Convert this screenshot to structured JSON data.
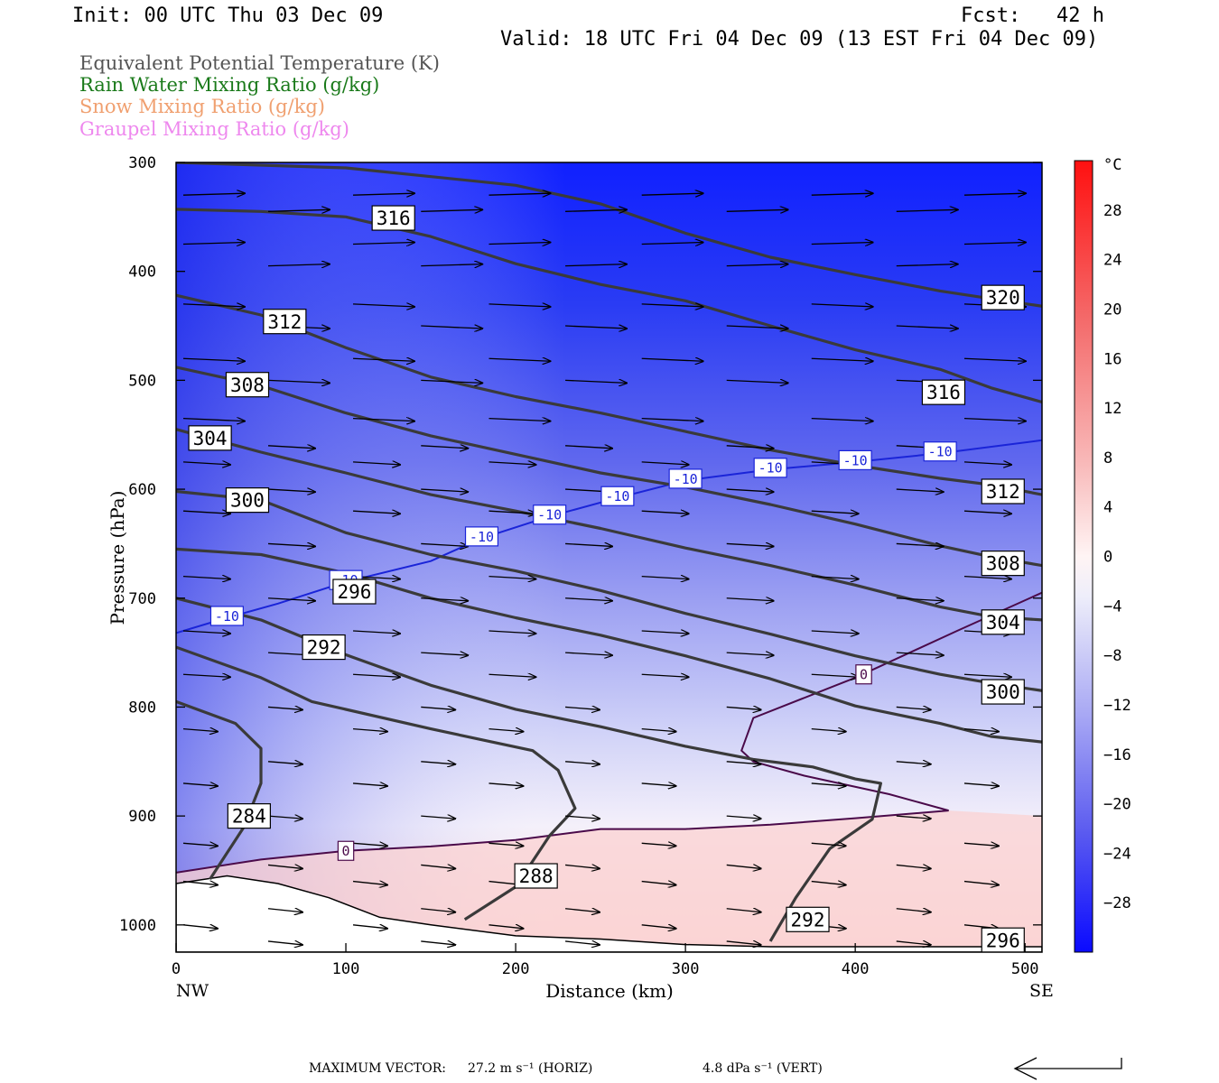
{
  "header": {
    "init": "Init: 00 UTC Thu 03 Dec 09",
    "fcst": "Fcst:   42 h",
    "valid": "Valid: 18 UTC Fri 04 Dec 09 (13 EST Fri 04 Dec 09)"
  },
  "legend": [
    {
      "label": "Equivalent Potential Temperature (K)",
      "color": "#555555"
    },
    {
      "label": "Rain Water Mixing Ratio (g/kg)",
      "color": "#1a7a1a"
    },
    {
      "label": "Snow Mixing Ratio (g/kg)",
      "color": "#f0a070"
    },
    {
      "label": "Graupel Mixing Ratio (g/kg)",
      "color": "#ee88ee"
    }
  ],
  "axes": {
    "ylabel": "Pressure (hPa)",
    "xlabel": "Distance (km)",
    "x_left_label": "NW",
    "x_right_label": "SE"
  },
  "colorbar": {
    "unit": "°C",
    "ticks": [
      "28",
      "24",
      "20",
      "16",
      "12",
      "8",
      "4",
      "0",
      "−4",
      "−8",
      "−12",
      "−16",
      "−20",
      "−24",
      "−28"
    ]
  },
  "footer": {
    "max_vector_label": "MAXIMUM VECTOR:",
    "horiz": "27.2 m s⁻¹ (HORIZ)",
    "vert": "4.8 dPa s⁻¹ (VERT)"
  },
  "chart_data": {
    "type": "contour",
    "xlim": [
      0,
      510
    ],
    "ylim": [
      1025,
      300
    ],
    "xticks": [
      0,
      100,
      200,
      300,
      400,
      500
    ],
    "yticks": [
      300,
      400,
      500,
      600,
      700,
      800,
      900,
      1000
    ],
    "temperature_levels_C": [
      -28,
      -24,
      -20,
      -16,
      -12,
      -8,
      -4,
      0,
      4,
      8,
      12,
      16,
      20,
      24,
      28
    ],
    "theta_e_contours": [
      {
        "label": "284",
        "points": [
          [
            0,
            795
          ],
          [
            35,
            815
          ],
          [
            50,
            838
          ],
          [
            50,
            870
          ],
          [
            40,
            910
          ],
          [
            20,
            958
          ]
        ]
      },
      {
        "label": "288",
        "points": [
          [
            0,
            745
          ],
          [
            50,
            773
          ],
          [
            80,
            795
          ],
          [
            150,
            820
          ],
          [
            210,
            840
          ],
          [
            225,
            858
          ],
          [
            235,
            893
          ],
          [
            220,
            918
          ],
          [
            200,
            965
          ],
          [
            170,
            995
          ]
        ]
      },
      {
        "label": "292",
        "points": [
          [
            0,
            700
          ],
          [
            50,
            720
          ],
          [
            100,
            752
          ],
          [
            150,
            780
          ],
          [
            200,
            802
          ],
          [
            250,
            818
          ],
          [
            300,
            836
          ],
          [
            340,
            848
          ],
          [
            375,
            855
          ],
          [
            400,
            866
          ],
          [
            415,
            870
          ],
          [
            410,
            903
          ],
          [
            385,
            930
          ],
          [
            365,
            975
          ],
          [
            350,
            1015
          ]
        ]
      },
      {
        "label": "296",
        "points": [
          [
            0,
            655
          ],
          [
            50,
            660
          ],
          [
            100,
            677
          ],
          [
            150,
            700
          ],
          [
            200,
            718
          ],
          [
            250,
            734
          ],
          [
            300,
            753
          ],
          [
            350,
            774
          ],
          [
            400,
            799
          ],
          [
            450,
            815
          ],
          [
            480,
            827
          ],
          [
            510,
            832
          ]
        ]
      },
      {
        "label": "300",
        "points": [
          [
            0,
            602
          ],
          [
            50,
            610
          ],
          [
            100,
            640
          ],
          [
            150,
            660
          ],
          [
            200,
            675
          ],
          [
            250,
            693
          ],
          [
            300,
            714
          ],
          [
            350,
            733
          ],
          [
            400,
            753
          ],
          [
            450,
            770
          ],
          [
            480,
            778
          ],
          [
            510,
            785
          ]
        ]
      },
      {
        "label": "304",
        "points": [
          [
            0,
            545
          ],
          [
            50,
            566
          ],
          [
            100,
            585
          ],
          [
            150,
            605
          ],
          [
            200,
            620
          ],
          [
            250,
            636
          ],
          [
            300,
            654
          ],
          [
            350,
            670
          ],
          [
            400,
            688
          ],
          [
            450,
            708
          ],
          [
            480,
            717
          ],
          [
            510,
            720
          ]
        ]
      },
      {
        "label": "308",
        "points": [
          [
            0,
            488
          ],
          [
            50,
            505
          ],
          [
            100,
            530
          ],
          [
            150,
            551
          ],
          [
            200,
            568
          ],
          [
            250,
            585
          ],
          [
            300,
            598
          ],
          [
            350,
            614
          ],
          [
            400,
            632
          ],
          [
            450,
            652
          ],
          [
            480,
            662
          ],
          [
            510,
            670
          ]
        ]
      },
      {
        "label": "312",
        "points": [
          [
            0,
            422
          ],
          [
            50,
            440
          ],
          [
            100,
            470
          ],
          [
            150,
            497
          ],
          [
            200,
            515
          ],
          [
            250,
            530
          ],
          [
            300,
            547
          ],
          [
            350,
            564
          ],
          [
            400,
            578
          ],
          [
            450,
            590
          ],
          [
            480,
            596
          ],
          [
            510,
            605
          ]
        ]
      },
      {
        "label": "316",
        "points": [
          [
            0,
            343
          ],
          [
            50,
            345
          ],
          [
            100,
            350
          ],
          [
            150,
            368
          ],
          [
            200,
            393
          ],
          [
            250,
            412
          ],
          [
            300,
            427
          ],
          [
            350,
            450
          ],
          [
            400,
            472
          ],
          [
            450,
            490
          ],
          [
            480,
            507
          ],
          [
            510,
            520
          ]
        ]
      },
      {
        "label": "320",
        "points": [
          [
            0,
            300
          ],
          [
            100,
            305
          ],
          [
            200,
            321
          ],
          [
            250,
            338
          ],
          [
            300,
            365
          ],
          [
            350,
            387
          ],
          [
            400,
            403
          ],
          [
            450,
            418
          ],
          [
            480,
            425
          ],
          [
            510,
            432
          ]
        ]
      }
    ],
    "isotherms": [
      {
        "label": "-10",
        "points": [
          [
            0,
            732
          ],
          [
            30,
            718
          ],
          [
            60,
            705
          ],
          [
            100,
            685
          ],
          [
            150,
            666
          ],
          [
            180,
            645
          ],
          [
            220,
            625
          ],
          [
            260,
            608
          ],
          [
            300,
            592
          ],
          [
            350,
            582
          ],
          [
            400,
            575
          ],
          [
            450,
            567
          ],
          [
            510,
            555
          ]
        ]
      },
      {
        "label": "0",
        "points": [
          [
            0,
            952
          ],
          [
            50,
            940
          ],
          [
            100,
            932
          ],
          [
            150,
            928
          ],
          [
            200,
            922
          ],
          [
            250,
            912
          ],
          [
            300,
            912
          ],
          [
            350,
            908
          ],
          [
            400,
            902
          ],
          [
            455,
            895
          ],
          [
            420,
            880
          ],
          [
            370,
            863
          ],
          [
            340,
            850
          ],
          [
            333,
            840
          ],
          [
            340,
            810
          ],
          [
            400,
            773
          ],
          [
            460,
            730
          ],
          [
            510,
            695
          ]
        ]
      }
    ],
    "terrain_pressure": [
      [
        0,
        962
      ],
      [
        30,
        955
      ],
      [
        60,
        962
      ],
      [
        90,
        975
      ],
      [
        120,
        993
      ],
      [
        150,
        1000
      ],
      [
        200,
        1010
      ],
      [
        250,
        1013
      ],
      [
        300,
        1018
      ],
      [
        350,
        1020
      ],
      [
        400,
        1020
      ],
      [
        510,
        1020
      ]
    ],
    "wind_vectors": {
      "pressures": [
        330,
        345,
        375,
        395,
        430,
        450,
        480,
        500,
        535,
        560,
        575,
        600,
        620,
        650,
        680,
        700,
        730,
        750,
        770,
        800,
        820,
        850,
        870,
        900,
        925,
        945,
        960,
        985,
        1000,
        1015
      ],
      "columns_km": [
        0,
        50,
        100,
        140,
        180,
        225,
        270,
        320,
        370,
        420,
        460,
        500
      ],
      "max_horizontal": "27.2 m s^-1",
      "max_vertical": "4.8 dPa s^-1"
    }
  }
}
